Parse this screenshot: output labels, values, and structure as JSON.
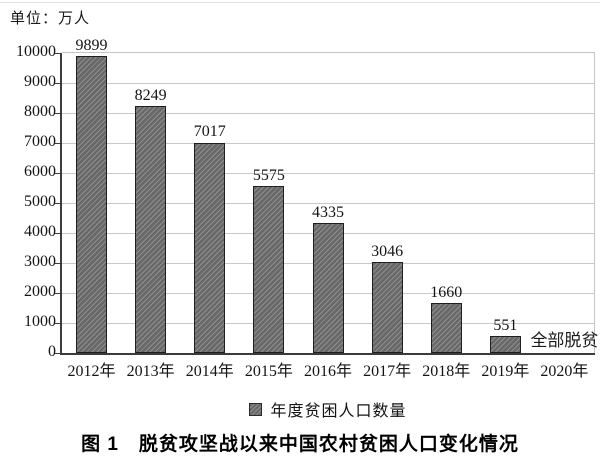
{
  "unit_label": "单位：万人",
  "caption": "图 1　脱贫攻坚战以来中国农村贫困人口变化情况",
  "legend": {
    "label": "年度贫困人口数量"
  },
  "colors": {
    "bar_fill": "#686868",
    "bar_hatch": "#8f8f8f",
    "bar_border": "#1f1f1f",
    "gridline": "#c9c9c9",
    "axis": "#3c3c3c"
  },
  "chart_data": {
    "type": "bar",
    "title": "图 1　脱贫攻坚战以来中国农村贫困人口变化情况",
    "ylabel": "单位：万人",
    "categories": [
      "2012年",
      "2013年",
      "2014年",
      "2015年",
      "2016年",
      "2017年",
      "2018年",
      "2019年",
      "2020年"
    ],
    "values": [
      9899,
      8249,
      7017,
      5575,
      4335,
      3046,
      1660,
      551,
      0
    ],
    "data_labels": [
      "9899",
      "8249",
      "7017",
      "5575",
      "4335",
      "3046",
      "1660",
      "551",
      ""
    ],
    "ylim": [
      0,
      10000
    ],
    "ytick_step": 1000,
    "ytick_labels": [
      "0",
      "1000",
      "2000",
      "3000",
      "4000",
      "5000",
      "6000",
      "7000",
      "8000",
      "9000",
      "10000"
    ],
    "grid": true,
    "legend_entries": [
      "年度贫困人口数量"
    ],
    "legend_position": "bottom-center",
    "annotations": [
      {
        "text": "全部脱贫",
        "category": "2020年",
        "y": 0
      }
    ]
  }
}
